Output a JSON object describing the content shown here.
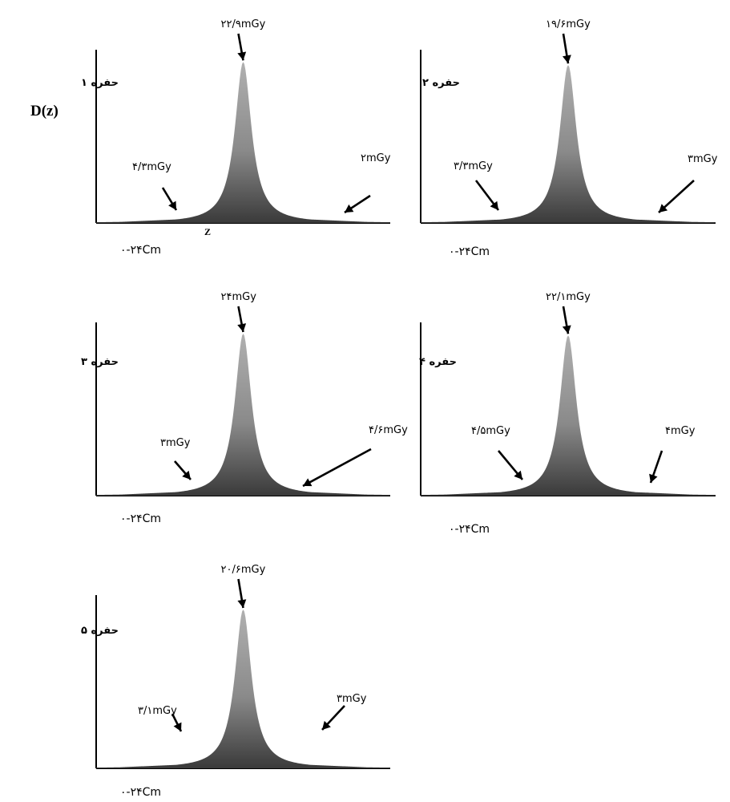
{
  "figure": {
    "y_axis_label": "D(z)",
    "x_axis_letter": "Z"
  },
  "chart_data": [
    {
      "type": "area",
      "panel_label": "حفره ۱",
      "x_range_label": "۰-۲۴Cm",
      "peak_label": "۲۲/۹mGy",
      "left_label": "۴/۳mGy",
      "right_label": "۲mGy",
      "peak_dose_mGy": 22.9,
      "left_tail_dose_mGy": 4.3,
      "right_tail_dose_mGy": 2,
      "xlim": [
        0,
        24
      ]
    },
    {
      "type": "area",
      "panel_label": "حفره ۲",
      "x_range_label": "۰-۲۴Cm",
      "peak_label": "۱۹/۶mGy",
      "left_label": "۳/۳mGy",
      "right_label": "۳mGy",
      "peak_dose_mGy": 19.6,
      "left_tail_dose_mGy": 3.3,
      "right_tail_dose_mGy": 3,
      "xlim": [
        0,
        24
      ]
    },
    {
      "type": "area",
      "panel_label": "حفره ۳",
      "x_range_label": "۰-۲۴Cm",
      "peak_label": "۲۴mGy",
      "left_label": "۳mGy",
      "right_label": "۴/۶mGy",
      "peak_dose_mGy": 24,
      "left_tail_dose_mGy": 3,
      "right_tail_dose_mGy": 4.6,
      "xlim": [
        0,
        24
      ]
    },
    {
      "type": "area",
      "panel_label": "حفره ۴",
      "x_range_label": "۰-۲۴Cm",
      "peak_label": "۲۲/۱mGy",
      "left_label": "۴/۵mGy",
      "right_label": "۴mGy",
      "peak_dose_mGy": 22.1,
      "left_tail_dose_mGy": 4.5,
      "right_tail_dose_mGy": 4,
      "xlim": [
        0,
        24
      ]
    },
    {
      "type": "area",
      "panel_label": "حفره ۵",
      "x_range_label": "۰-۲۴Cm",
      "peak_label": "۲۰/۶mGy",
      "left_label": "۳/۱mGy",
      "right_label": "۳mGy",
      "peak_dose_mGy": 20.6,
      "left_tail_dose_mGy": 3.1,
      "right_tail_dose_mGy": 3,
      "xlim": [
        0,
        24
      ]
    }
  ]
}
